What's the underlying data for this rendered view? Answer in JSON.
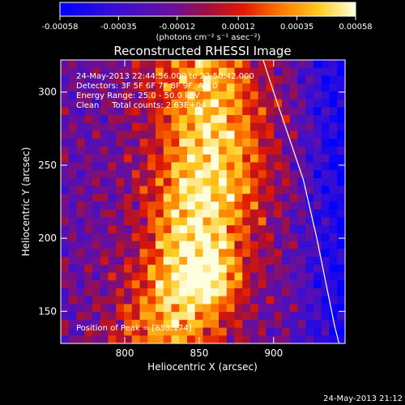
{
  "colorbar": {
    "tick_labels": [
      "-0.00058",
      "-0.00035",
      "-0.00012",
      "0.00012",
      "0.00035",
      "0.00058"
    ],
    "units": "(photons cm⁻² s⁻¹ asec⁻²)"
  },
  "image": {
    "title": "Reconstructed RHESSI Image",
    "xlabel": "Heliocentric X (arcsec)",
    "ylabel": "Heliocentric Y (arcsec)",
    "x_ticks": [
      "800",
      "850",
      "900"
    ],
    "y_ticks": [
      "150",
      "200",
      "250",
      "300"
    ],
    "info_lines": [
      "24-May-2013 22:44:56.000 to 22:50:42.000",
      "Detectors: 3F 5F 6F 7F 8F 9F, Att 0",
      "Energy Range: 25.0 - 50.0 keV",
      "Clean     Total counts: 2.63E+04"
    ],
    "peak_label": "Position of Peak = [858,174]"
  },
  "footer": {
    "timestamp": "24-May-2013 21:12"
  },
  "chart_data": {
    "type": "heatmap",
    "title": "Reconstructed RHESSI Image",
    "xlabel": "Heliocentric X (arcsec)",
    "ylabel": "Heliocentric Y (arcsec)",
    "xlim": [
      757,
      948
    ],
    "ylim": [
      128,
      322
    ],
    "x_ticks": [
      800,
      850,
      900
    ],
    "y_ticks": [
      150,
      200,
      250,
      300
    ],
    "color_range": [
      -0.00058,
      0.00058
    ],
    "colormap": "blue-purple-red-orange-yellow-white",
    "peak_position": [
      858,
      174
    ],
    "limb_curve": [
      [
        893,
        322
      ],
      [
        900,
        300
      ],
      [
        910,
        270
      ],
      [
        920,
        240
      ],
      [
        929,
        200
      ],
      [
        935,
        170
      ],
      [
        941,
        140
      ],
      [
        944,
        128
      ]
    ]
  }
}
